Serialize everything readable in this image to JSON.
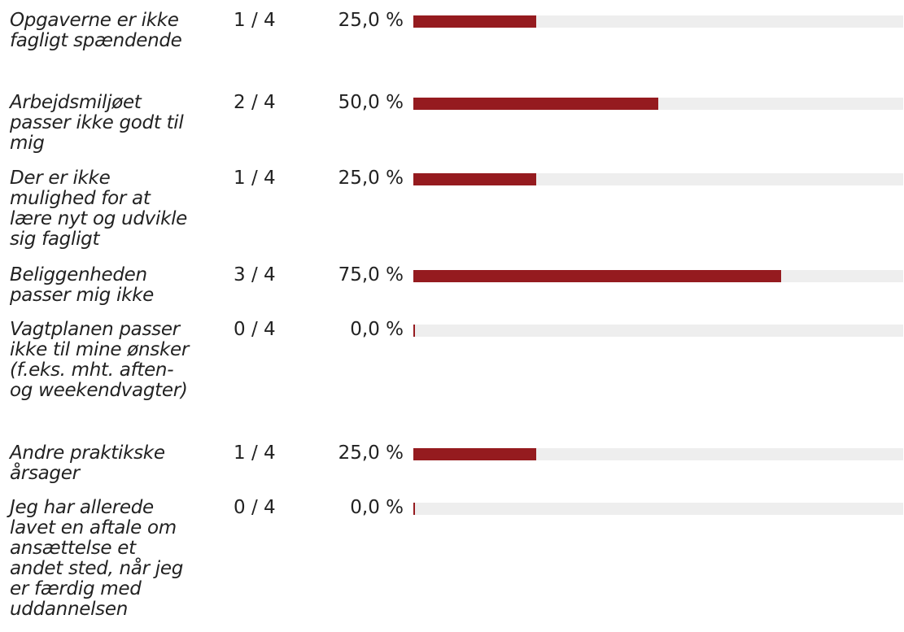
{
  "colors": {
    "bar_fill": "#951b1f",
    "bar_track": "#eeeeee",
    "text": "#222222"
  },
  "chart_data": {
    "type": "bar",
    "orientation": "horizontal",
    "ylim": [
      0,
      100
    ],
    "categories": [
      "Opgaverne er ikke fagligt spændende",
      "Arbejdsmiljøet passer ikke godt til mig",
      "Der er ikke mulighed for at lære nyt og udvikle sig fagligt",
      "Beliggenheden passer mig ikke",
      "Vagtplanen passer ikke til mine ønsker (f.eks. mht. aften- og weekendvagter)",
      "Andre praktikske årsager",
      "Jeg har allerede lavet en aftale om ansættelse et andet sted, når jeg er færdig med uddannelsen"
    ],
    "counts": [
      "1 / 4",
      "2 / 4",
      "1 / 4",
      "3 / 4",
      "0 / 4",
      "1 / 4",
      "0 / 4"
    ],
    "percent_labels": [
      "25,0 %",
      "50,0 %",
      "25,0 %",
      "75,0 %",
      "0,0 %",
      "25,0 %",
      "0,0 %"
    ],
    "values": [
      25.0,
      50.0,
      25.0,
      75.0,
      0.0,
      25.0,
      0.0
    ]
  }
}
